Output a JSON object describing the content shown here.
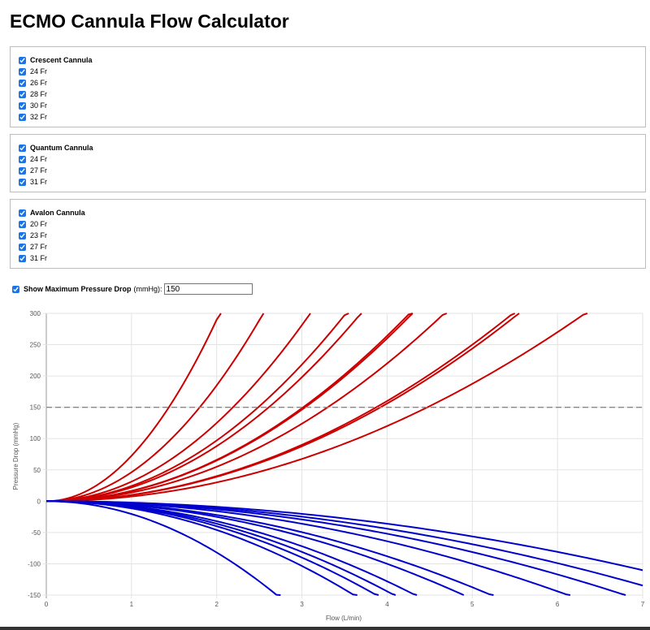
{
  "title": "ECMO Cannula Flow Calculator",
  "groups": [
    {
      "name": "Crescent Cannula",
      "checked": true,
      "sizes": [
        {
          "label": "24 Fr",
          "checked": true
        },
        {
          "label": "26 Fr",
          "checked": true
        },
        {
          "label": "28 Fr",
          "checked": true
        },
        {
          "label": "30 Fr",
          "checked": true
        },
        {
          "label": "32 Fr",
          "checked": true
        }
      ]
    },
    {
      "name": "Quantum Cannula",
      "checked": true,
      "sizes": [
        {
          "label": "24 Fr",
          "checked": true
        },
        {
          "label": "27 Fr",
          "checked": true
        },
        {
          "label": "31 Fr",
          "checked": true
        }
      ]
    },
    {
      "name": "Avalon Cannula",
      "checked": true,
      "sizes": [
        {
          "label": "20 Fr",
          "checked": true
        },
        {
          "label": "23 Fr",
          "checked": true
        },
        {
          "label": "27 Fr",
          "checked": true
        },
        {
          "label": "31 Fr",
          "checked": true
        }
      ]
    }
  ],
  "pressure_drop": {
    "label": "Show Maximum Pressure Drop",
    "unit": "(mmHg):",
    "checked": true,
    "value": "150"
  },
  "chart_data": {
    "type": "line",
    "xlabel": "Flow (L/min)",
    "ylabel": "Pressure Drop (mmHg)",
    "xlim": [
      0,
      7
    ],
    "ylim": [
      -150,
      300
    ],
    "x_ticks": [
      0,
      1,
      2,
      3,
      4,
      5,
      6,
      7
    ],
    "y_ticks": [
      300,
      250,
      200,
      150,
      100,
      50,
      0,
      -50,
      -100,
      -150
    ],
    "grid": true,
    "threshold_line": {
      "value": 150,
      "style": "dashed",
      "color": "#888888"
    },
    "colors": {
      "positive": "#cc0000",
      "negative": "#0000cc"
    },
    "positive_series_values_at_2_Lmin": [
      290,
      185,
      125,
      97,
      88,
      66,
      65,
      55,
      40,
      39,
      30
    ],
    "negative_series_values_at_2_Lmin": [
      -82,
      -46,
      -40,
      -36,
      -32,
      -25,
      -22,
      -16,
      -13,
      -11,
      -9
    ]
  }
}
